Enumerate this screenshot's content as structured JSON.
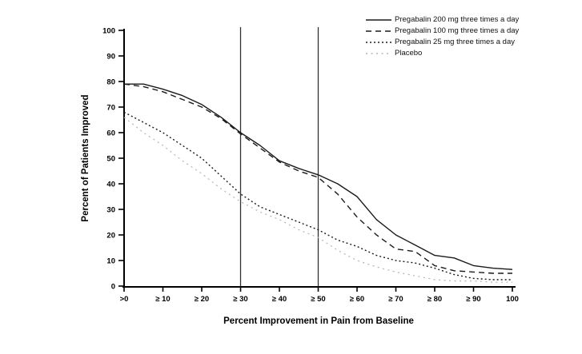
{
  "chart_data": {
    "type": "line",
    "title": "",
    "xlabel": "Percent Improvement in Pain from Baseline",
    "ylabel": "Percent of Patients Improved",
    "xlim": [
      0,
      100
    ],
    "ylim": [
      0,
      100
    ],
    "grid": false,
    "legend_position": "top-right",
    "reference_lines_x": [
      30,
      50
    ],
    "x_ticks": [
      {
        "v": 0,
        "label": ">0"
      },
      {
        "v": 10,
        "label": "≥ 10"
      },
      {
        "v": 20,
        "label": "≥ 20"
      },
      {
        "v": 30,
        "label": "≥ 30"
      },
      {
        "v": 40,
        "label": "≥ 40"
      },
      {
        "v": 50,
        "label": "≥ 50"
      },
      {
        "v": 60,
        "label": "≥ 60"
      },
      {
        "v": 70,
        "label": "≥ 70"
      },
      {
        "v": 80,
        "label": "≥ 80"
      },
      {
        "v": 90,
        "label": "≥ 90"
      },
      {
        "v": 100,
        "label": "100"
      }
    ],
    "y_ticks": [
      {
        "v": 0,
        "label": "0"
      },
      {
        "v": 10,
        "label": "10"
      },
      {
        "v": 20,
        "label": "20"
      },
      {
        "v": 30,
        "label": "30"
      },
      {
        "v": 40,
        "label": "40"
      },
      {
        "v": 50,
        "label": "50"
      },
      {
        "v": 60,
        "label": "60"
      },
      {
        "v": 70,
        "label": "70"
      },
      {
        "v": 80,
        "label": "80"
      },
      {
        "v": 90,
        "label": "90"
      },
      {
        "v": 100,
        "label": "100"
      }
    ],
    "x": [
      0,
      5,
      10,
      15,
      20,
      25,
      30,
      35,
      40,
      45,
      50,
      55,
      60,
      65,
      70,
      75,
      80,
      85,
      90,
      95,
      100
    ],
    "series": [
      {
        "name": "Pregabalin 200 mg three times a day",
        "style": "solid",
        "color": "#1a1a1a",
        "values": [
          79,
          79,
          77,
          74.5,
          71,
          66,
          60,
          55,
          49,
          46,
          43.5,
          40,
          35,
          26,
          20,
          16,
          12,
          11,
          8,
          7,
          6.5
        ]
      },
      {
        "name": "Pregabalin 100 mg three times a day",
        "style": "dashed",
        "color": "#1a1a1a",
        "values": [
          79,
          78,
          76,
          73,
          70,
          65.5,
          59.5,
          54,
          48.5,
          45,
          42.5,
          36,
          27,
          20,
          14.5,
          13.5,
          8,
          6,
          5.5,
          5,
          5
        ]
      },
      {
        "name": "Pregabalin 25 mg three times a day",
        "style": "dotted",
        "color": "#1a1a1a",
        "values": [
          68,
          64,
          60,
          55,
          50,
          43,
          36,
          31,
          28,
          25,
          22,
          18,
          15.5,
          12,
          10,
          9,
          7,
          4.5,
          3,
          2.5,
          2.5
        ]
      },
      {
        "name": "Placebo",
        "style": "dotted-sparse",
        "color": "#b3b3b3",
        "values": [
          66,
          60,
          55,
          49,
          44,
          38,
          33,
          29,
          26,
          22,
          19,
          14,
          10,
          7.5,
          5.5,
          4,
          2.5,
          2,
          2,
          1.5,
          1.5
        ]
      }
    ],
    "colors": {
      "ink": "#000000",
      "reference_line": "#333333",
      "placebo_gray": "#b3b3b3"
    }
  }
}
